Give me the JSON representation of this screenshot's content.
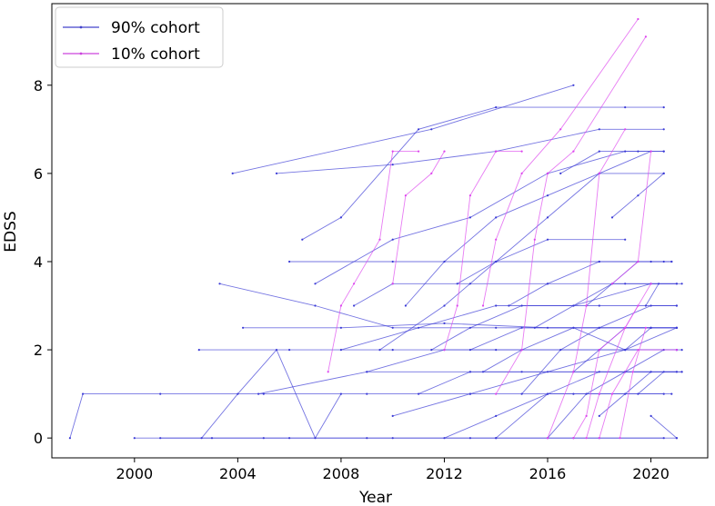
{
  "chart_data": {
    "type": "line",
    "title": "",
    "xlabel": "Year",
    "ylabel": "EDSS",
    "xlim": [
      1996.8,
      2022.2
    ],
    "ylim": [
      -0.45,
      9.85
    ],
    "xticks": [
      2000,
      2004,
      2008,
      2012,
      2016,
      2020
    ],
    "yticks": [
      0,
      2,
      4,
      6,
      8
    ],
    "grid": false,
    "legend_position": "top-left",
    "series": [
      {
        "name": "90% cohort",
        "color": "#3a3ad6",
        "trajectories": [
          [
            [
              1997.5,
              0
            ],
            [
              1998,
              1
            ],
            [
              2001,
              1
            ],
            [
              2005,
              1
            ],
            [
              2009,
              1
            ],
            [
              2013,
              1
            ],
            [
              2017,
              1
            ],
            [
              2020.8,
              1
            ]
          ],
          [
            [
              2000,
              0
            ],
            [
              2003,
              0
            ],
            [
              2006,
              0
            ],
            [
              2010,
              0
            ],
            [
              2014,
              0
            ],
            [
              2018,
              0
            ],
            [
              2021,
              0
            ]
          ],
          [
            [
              2001,
              0
            ],
            [
              2005,
              0
            ],
            [
              2009,
              0
            ],
            [
              2013,
              0
            ],
            [
              2017,
              0
            ],
            [
              2020.5,
              0
            ]
          ],
          [
            [
              2002.6,
              0
            ],
            [
              2004,
              1
            ],
            [
              2005.5,
              2
            ],
            [
              2007,
              0
            ],
            [
              2008,
              1
            ]
          ],
          [
            [
              2002.5,
              2
            ],
            [
              2006,
              2
            ],
            [
              2010,
              2
            ],
            [
              2014,
              2
            ],
            [
              2018,
              2
            ],
            [
              2021,
              2
            ]
          ],
          [
            [
              2003.3,
              3.5
            ],
            [
              2007,
              3
            ],
            [
              2010,
              2.5
            ],
            [
              2014,
              2.5
            ],
            [
              2018,
              2.5
            ],
            [
              2021,
              2.5
            ]
          ],
          [
            [
              2003.8,
              6
            ],
            [
              2011.5,
              7
            ],
            [
              2017,
              8
            ]
          ],
          [
            [
              2005.5,
              6
            ],
            [
              2010,
              6.2
            ],
            [
              2014,
              6.5
            ],
            [
              2018,
              7
            ],
            [
              2020.5,
              7
            ]
          ],
          [
            [
              2004.2,
              2.5
            ],
            [
              2008,
              2.5
            ],
            [
              2012,
              2.6
            ],
            [
              2016,
              2.5
            ],
            [
              2020,
              2.5
            ]
          ],
          [
            [
              2004.8,
              1
            ],
            [
              2009,
              1.5
            ],
            [
              2013,
              1.5
            ],
            [
              2017,
              1.5
            ],
            [
              2021,
              1.5
            ]
          ],
          [
            [
              2006,
              4
            ],
            [
              2010,
              4
            ],
            [
              2014,
              4
            ],
            [
              2018,
              4
            ],
            [
              2020.8,
              4
            ]
          ],
          [
            [
              2006.5,
              4.5
            ],
            [
              2008,
              5
            ],
            [
              2011,
              7
            ],
            [
              2014,
              7.5
            ],
            [
              2019,
              7.5
            ],
            [
              2020.5,
              7.5
            ]
          ],
          [
            [
              2007,
              3.5
            ],
            [
              2010,
              4.5
            ],
            [
              2013,
              5
            ],
            [
              2016,
              6
            ],
            [
              2019,
              6.5
            ],
            [
              2020.5,
              6.5
            ]
          ],
          [
            [
              2008,
              2
            ],
            [
              2011,
              2.5
            ],
            [
              2014,
              3
            ],
            [
              2017,
              3
            ],
            [
              2020,
              3.5
            ],
            [
              2021,
              3.5
            ]
          ],
          [
            [
              2008.5,
              3
            ],
            [
              2010,
              3.5
            ],
            [
              2013,
              3.5
            ],
            [
              2016,
              3.5
            ],
            [
              2019,
              3.5
            ],
            [
              2021.2,
              3.5
            ]
          ],
          [
            [
              2009,
              1.5
            ],
            [
              2012,
              2
            ],
            [
              2015,
              2
            ],
            [
              2018,
              2
            ],
            [
              2021,
              2
            ]
          ],
          [
            [
              2009.5,
              2
            ],
            [
              2012,
              3
            ],
            [
              2014,
              4
            ],
            [
              2016,
              4.5
            ],
            [
              2019,
              4.5
            ]
          ],
          [
            [
              2010,
              0.5
            ],
            [
              2013,
              1
            ],
            [
              2016,
              1.5
            ],
            [
              2019,
              2
            ],
            [
              2021,
              2.5
            ]
          ],
          [
            [
              2010.5,
              3
            ],
            [
              2012,
              4
            ],
            [
              2014,
              5
            ],
            [
              2016,
              5.5
            ],
            [
              2018,
              6
            ],
            [
              2020.5,
              6
            ]
          ],
          [
            [
              2011,
              1
            ],
            [
              2013,
              1.5
            ],
            [
              2015,
              1.5
            ],
            [
              2017,
              1.5
            ],
            [
              2019,
              1.5
            ],
            [
              2021.2,
              1.5
            ]
          ],
          [
            [
              2011.5,
              2
            ],
            [
              2013,
              2.5
            ],
            [
              2015,
              3
            ],
            [
              2018,
              3
            ],
            [
              2021,
              3
            ]
          ],
          [
            [
              2012,
              0
            ],
            [
              2014,
              0.5
            ],
            [
              2016,
              1
            ],
            [
              2018,
              1
            ],
            [
              2020.5,
              1
            ]
          ],
          [
            [
              2012.5,
              3.5
            ],
            [
              2014,
              4
            ],
            [
              2016,
              5
            ],
            [
              2018,
              6
            ],
            [
              2020,
              6.5
            ]
          ],
          [
            [
              2013,
              2
            ],
            [
              2015,
              2.5
            ],
            [
              2017,
              2.5
            ],
            [
              2019,
              2.5
            ],
            [
              2021,
              2.5
            ]
          ],
          [
            [
              2013.5,
              1.5
            ],
            [
              2015,
              2
            ],
            [
              2017,
              2.5
            ],
            [
              2019,
              2
            ],
            [
              2021,
              2
            ]
          ],
          [
            [
              2014,
              0
            ],
            [
              2016,
              1
            ],
            [
              2018,
              1.5
            ],
            [
              2020,
              1.5
            ]
          ],
          [
            [
              2014.5,
              3
            ],
            [
              2016,
              3.5
            ],
            [
              2018,
              4
            ],
            [
              2020,
              4
            ],
            [
              2020.8,
              4
            ]
          ],
          [
            [
              2015,
              1
            ],
            [
              2016.5,
              2
            ],
            [
              2018,
              2.5
            ],
            [
              2020,
              3
            ],
            [
              2021,
              3
            ]
          ],
          [
            [
              2015.5,
              2.5
            ],
            [
              2017,
              3
            ],
            [
              2018.5,
              3.5
            ],
            [
              2020,
              3.5
            ],
            [
              2021,
              3.5
            ]
          ],
          [
            [
              2016,
              0
            ],
            [
              2017.5,
              1
            ],
            [
              2019,
              1.5
            ],
            [
              2020.5,
              2
            ],
            [
              2021.2,
              2
            ]
          ],
          [
            [
              2016.5,
              6
            ],
            [
              2018,
              6.5
            ],
            [
              2019.5,
              6.5
            ],
            [
              2020.5,
              6.5
            ]
          ],
          [
            [
              2017,
              1.5
            ],
            [
              2018,
              2
            ],
            [
              2019,
              2.5
            ],
            [
              2020,
              2.5
            ],
            [
              2021,
              2.5
            ]
          ],
          [
            [
              2017.5,
              3
            ],
            [
              2018.5,
              3.5
            ],
            [
              2019.5,
              4
            ],
            [
              2020.5,
              4
            ]
          ],
          [
            [
              2018,
              0.5
            ],
            [
              2019,
              1
            ],
            [
              2020,
              1.5
            ],
            [
              2021,
              1.5
            ]
          ],
          [
            [
              2018.5,
              5
            ],
            [
              2019.5,
              5.5
            ],
            [
              2020.5,
              6
            ]
          ],
          [
            [
              2019,
              2
            ],
            [
              2020,
              2.5
            ],
            [
              2021,
              2.5
            ]
          ],
          [
            [
              2019.5,
              1
            ],
            [
              2020.5,
              1.5
            ],
            [
              2021.2,
              1.5
            ]
          ],
          [
            [
              2019.8,
              3
            ],
            [
              2020.3,
              3.5
            ]
          ],
          [
            [
              2020,
              0.5
            ],
            [
              2021,
              0
            ]
          ]
        ]
      },
      {
        "name": "10% cohort",
        "color": "#dd44ee",
        "trajectories": [
          [
            [
              2007.5,
              1.5
            ],
            [
              2008,
              3
            ],
            [
              2008.5,
              3.5
            ],
            [
              2009.5,
              4.5
            ],
            [
              2010,
              6.5
            ],
            [
              2011,
              6.5
            ]
          ],
          [
            [
              2010,
              3.5
            ],
            [
              2010.5,
              5.5
            ],
            [
              2011.5,
              6
            ],
            [
              2012,
              6.5
            ]
          ],
          [
            [
              2012,
              2
            ],
            [
              2012.5,
              3
            ],
            [
              2013,
              5.5
            ],
            [
              2014,
              6.5
            ],
            [
              2015,
              6.5
            ]
          ],
          [
            [
              2013.5,
              3
            ],
            [
              2014,
              4.5
            ],
            [
              2015,
              6
            ],
            [
              2016.5,
              7
            ],
            [
              2019.5,
              9.5
            ]
          ],
          [
            [
              2014,
              1
            ],
            [
              2015,
              2
            ],
            [
              2015.5,
              4.5
            ],
            [
              2016,
              6
            ],
            [
              2017,
              6.5
            ],
            [
              2019.8,
              9.1
            ]
          ],
          [
            [
              2016,
              0
            ],
            [
              2017,
              1.5
            ],
            [
              2017.5,
              3
            ],
            [
              2018,
              6
            ],
            [
              2019,
              7
            ]
          ],
          [
            [
              2017,
              0
            ],
            [
              2017.5,
              0.5
            ],
            [
              2018,
              2
            ],
            [
              2019,
              2.5
            ],
            [
              2020,
              3.5
            ]
          ],
          [
            [
              2017.5,
              0
            ],
            [
              2018,
              1
            ],
            [
              2019,
              2.5
            ],
            [
              2019.5,
              3
            ]
          ],
          [
            [
              2018,
              0
            ],
            [
              2018.5,
              1
            ],
            [
              2019.5,
              2
            ],
            [
              2021,
              2
            ]
          ],
          [
            [
              2018.5,
              3.5
            ],
            [
              2019.5,
              4
            ],
            [
              2020,
              6.5
            ]
          ],
          [
            [
              2018.8,
              0
            ],
            [
              2019.3,
              1.5
            ],
            [
              2019.8,
              2.5
            ]
          ]
        ]
      }
    ]
  },
  "legend": {
    "items": [
      {
        "label": "90% cohort",
        "color": "#4444cc"
      },
      {
        "label": "10% cohort",
        "color": "#cc44dd"
      }
    ]
  }
}
